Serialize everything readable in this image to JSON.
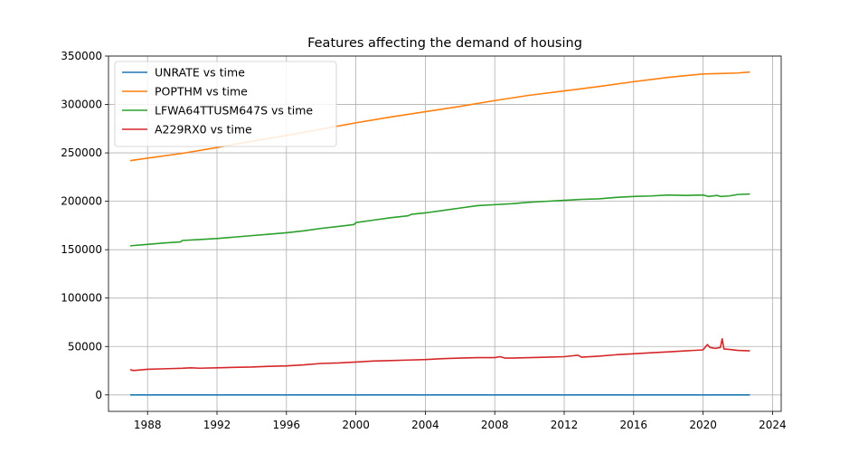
{
  "chart_data": {
    "type": "line",
    "title": "Features affecting the demand of housing",
    "xlabel": "",
    "ylabel": "",
    "xlim": [
      1985.75,
      2024.5
    ],
    "ylim": [
      -17000,
      350000
    ],
    "x_ticks": [
      1988,
      1992,
      1996,
      2000,
      2004,
      2008,
      2012,
      2016,
      2020,
      2024
    ],
    "x_tick_labels": [
      "1988",
      "1992",
      "1996",
      "2000",
      "2004",
      "2008",
      "2012",
      "2016",
      "2020",
      "2024"
    ],
    "y_ticks": [
      0,
      50000,
      100000,
      150000,
      200000,
      250000,
      300000,
      350000
    ],
    "y_tick_labels": [
      "0",
      "50000",
      "100000",
      "150000",
      "200000",
      "250000",
      "300000",
      "350000"
    ],
    "grid": true,
    "legend_position": "top-left",
    "series": [
      {
        "name": "UNRATE vs time",
        "color": "#1f77b4",
        "x": [
          1987.0,
          1992.5,
          2000.0,
          2009.8,
          2020.3,
          2022.7
        ],
        "y": [
          6.6,
          7.7,
          4.0,
          10.0,
          14.7,
          3.5
        ]
      },
      {
        "name": "POPTHM vs time",
        "color": "#ff7f0e",
        "x": [
          1987.0,
          1988.0,
          1990.0,
          1992.0,
          1994.0,
          1996.0,
          1998.0,
          2000.0,
          2002.0,
          2004.0,
          2006.0,
          2008.0,
          2010.0,
          2012.0,
          2014.0,
          2016.0,
          2018.0,
          2020.0,
          2021.0,
          2022.0,
          2022.7
        ],
        "y": [
          242000,
          244500,
          249500,
          255500,
          262000,
          268000,
          274500,
          281000,
          287000,
          292500,
          298000,
          304000,
          309500,
          314000,
          318500,
          323500,
          328000,
          331500,
          332000,
          332500,
          333500
        ]
      },
      {
        "name": "LFWA64TTUSM647S vs time",
        "color": "#2ca02c",
        "x": [
          1987.0,
          1988.0,
          1989.0,
          1989.9,
          1990.0,
          1991.0,
          1992.0,
          1993.0,
          1994.0,
          1995.0,
          1996.0,
          1997.0,
          1998.0,
          1999.0,
          1999.9,
          2000.0,
          2001.0,
          2002.0,
          2003.0,
          2003.2,
          2004.0,
          2005.0,
          2006.0,
          2007.0,
          2008.0,
          2009.0,
          2010.0,
          2011.0,
          2012.0,
          2013.0,
          2014.0,
          2015.0,
          2016.0,
          2017.0,
          2018.0,
          2019.0,
          2020.0,
          2020.3,
          2020.8,
          2021.0,
          2021.5,
          2022.0,
          2022.7
        ],
        "y": [
          154000,
          155500,
          157000,
          158000,
          159500,
          160500,
          161500,
          163000,
          164500,
          166000,
          167500,
          169500,
          172000,
          174000,
          176000,
          178000,
          180500,
          183000,
          185000,
          186500,
          188000,
          190500,
          193000,
          195500,
          196500,
          197500,
          199000,
          200000,
          201000,
          202000,
          202500,
          204000,
          205000,
          205500,
          206500,
          206000,
          206500,
          205000,
          206000,
          205000,
          205500,
          207000,
          207500
        ]
      },
      {
        "name": "A229RX0 vs time",
        "color": "#d62728",
        "x": [
          1987.0,
          1987.2,
          1988.0,
          1989.0,
          1990.0,
          1990.5,
          1991.0,
          1992.0,
          1993.0,
          1994.0,
          1995.0,
          1996.0,
          1997.0,
          1998.0,
          1999.0,
          2000.0,
          2001.0,
          2002.0,
          2003.0,
          2004.0,
          2005.0,
          2006.0,
          2007.0,
          2008.0,
          2008.3,
          2008.6,
          2009.0,
          2010.0,
          2011.0,
          2012.0,
          2012.8,
          2013.0,
          2014.0,
          2015.0,
          2016.0,
          2017.0,
          2018.0,
          2019.0,
          2020.0,
          2020.25,
          2020.4,
          2020.7,
          2021.0,
          2021.1,
          2021.2,
          2021.5,
          2022.0,
          2022.7
        ],
        "y": [
          26000,
          25200,
          26500,
          27000,
          27500,
          28000,
          27600,
          28000,
          28500,
          28800,
          29500,
          30000,
          31000,
          32500,
          33000,
          34000,
          35000,
          35500,
          36000,
          36500,
          37500,
          38000,
          38500,
          38500,
          39500,
          38000,
          38000,
          38500,
          39000,
          39500,
          41000,
          39000,
          40000,
          41500,
          42500,
          43500,
          44500,
          45500,
          46500,
          52000,
          49000,
          48000,
          49000,
          58000,
          47500,
          47000,
          46000,
          45500
        ]
      }
    ]
  }
}
